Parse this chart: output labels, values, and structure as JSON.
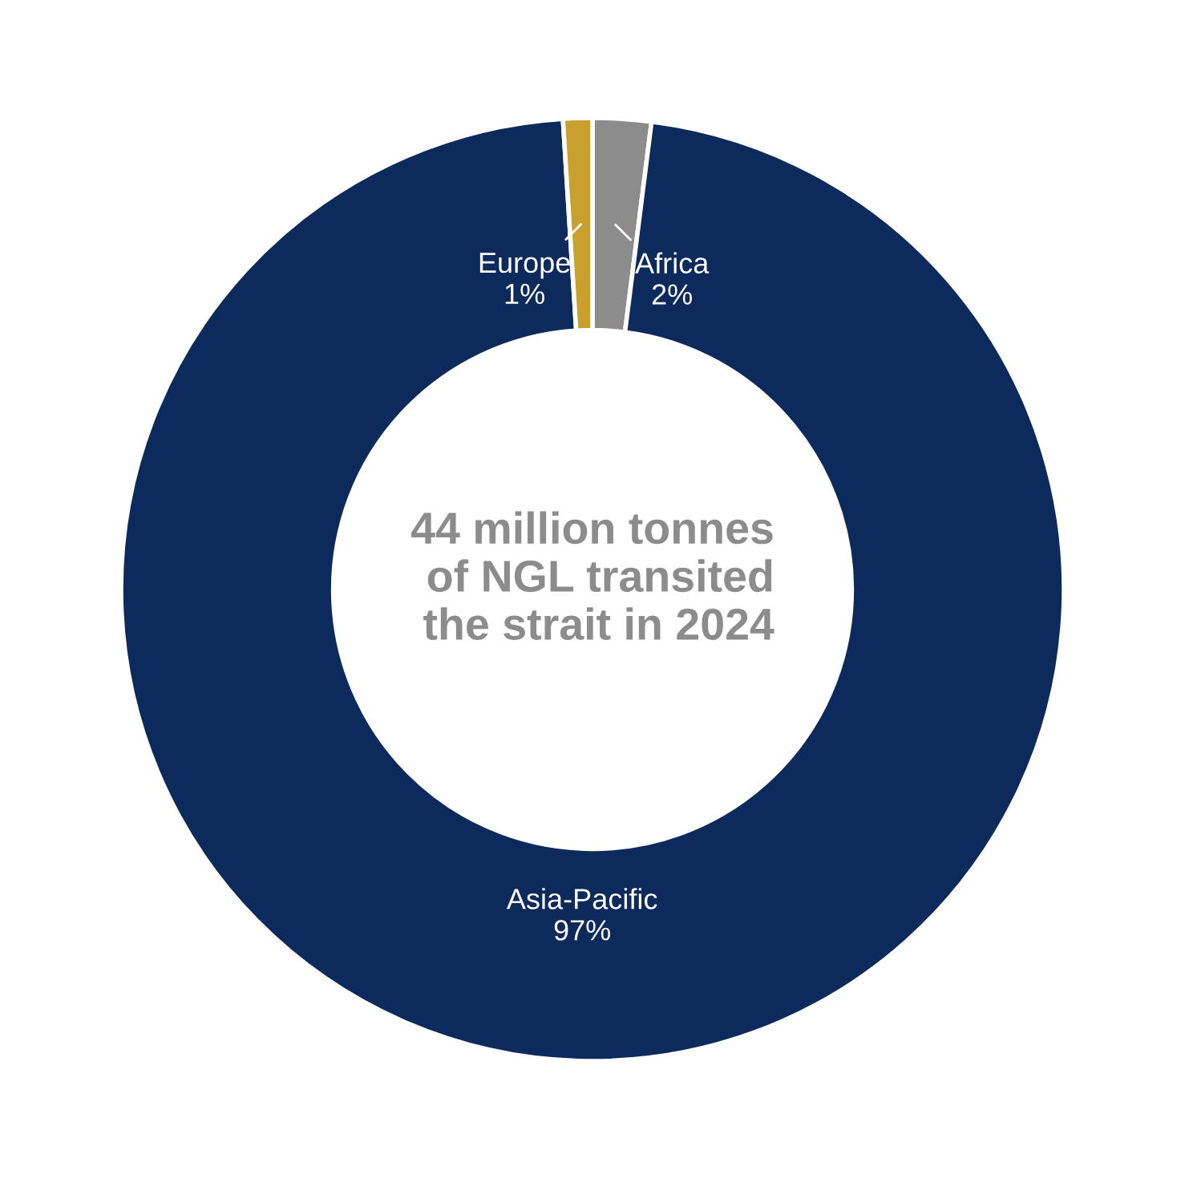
{
  "chart_data": {
    "type": "donut",
    "categories": [
      "Africa",
      "Asia-Pacific",
      "Europe"
    ],
    "values": [
      2,
      97,
      1
    ],
    "colors": [
      "#8c8c8c",
      "#0d2a5c",
      "#c9a02e"
    ],
    "value_labels": [
      "2%",
      "97%",
      "1%"
    ],
    "annotations": [
      "44 million tonnes\nof NGL transited\nthe strait in 2024"
    ]
  }
}
